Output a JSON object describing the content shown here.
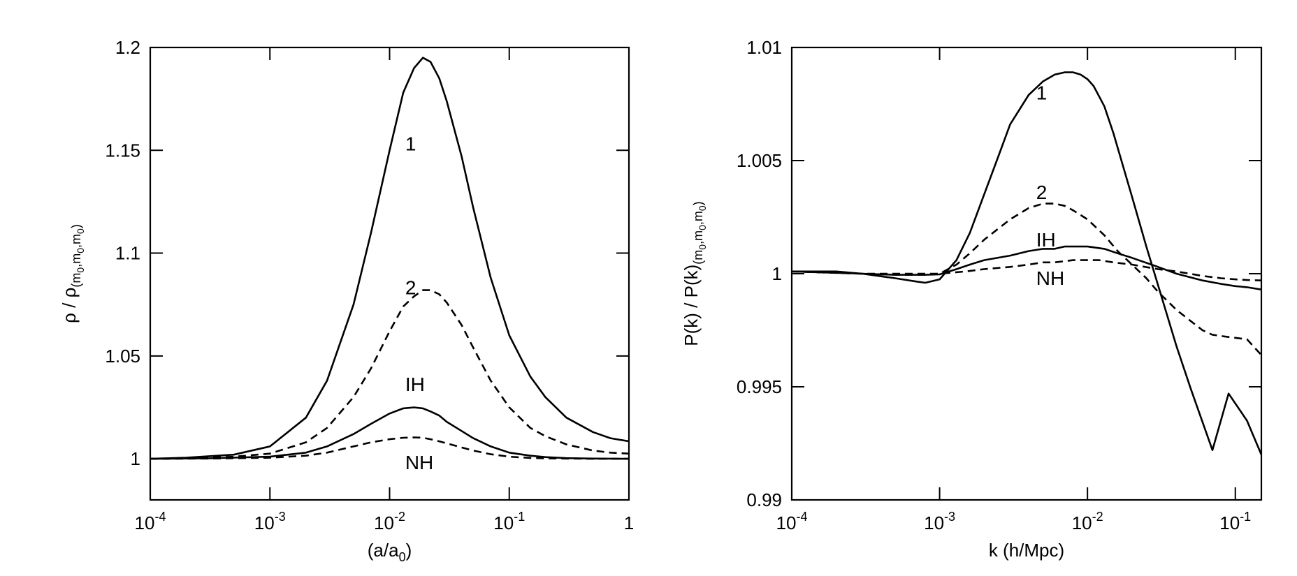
{
  "chart_data": [
    {
      "type": "line",
      "xscale": "log",
      "xlim": [
        0.0001,
        1
      ],
      "ylim": [
        0.98,
        1.2
      ],
      "xlabel": {
        "base": "(a/a",
        "sub": "0",
        "close": ")"
      },
      "ylabel": {
        "prefix": "ρ / ρ",
        "sub": "(m",
        "s1": "0",
        "c1": ",m",
        "s2": "0",
        "c2": ",m",
        "s3": "0",
        "c3": ")"
      },
      "xticks": [
        {
          "value": 0.0001,
          "base": "10",
          "exp": "-4"
        },
        {
          "value": 0.001,
          "base": "10",
          "exp": "-3"
        },
        {
          "value": 0.01,
          "base": "10",
          "exp": "-2"
        },
        {
          "value": 0.1,
          "base": "10",
          "exp": "-1"
        },
        {
          "value": 1,
          "base": "1",
          "exp": ""
        }
      ],
      "yticks": [
        {
          "value": 1.0,
          "label": "1"
        },
        {
          "value": 1.05,
          "label": "1.05"
        },
        {
          "value": 1.1,
          "label": "1.1"
        },
        {
          "value": 1.15,
          "label": "1.15"
        },
        {
          "value": 1.2,
          "label": "1.2"
        }
      ],
      "series": [
        {
          "label": "1",
          "style": "solid",
          "label_at": [
            0.0135,
            1.15
          ],
          "x": [
            0.0001,
            0.0002,
            0.0005,
            0.001,
            0.002,
            0.003,
            0.005,
            0.007,
            0.01,
            0.013,
            0.016,
            0.019,
            0.022,
            0.026,
            0.03,
            0.04,
            0.05,
            0.07,
            0.1,
            0.15,
            0.2,
            0.3,
            0.5,
            0.7,
            1
          ],
          "y": [
            1.0,
            1.0005,
            1.002,
            1.006,
            1.02,
            1.038,
            1.075,
            1.11,
            1.15,
            1.178,
            1.19,
            1.195,
            1.193,
            1.185,
            1.174,
            1.147,
            1.122,
            1.088,
            1.06,
            1.04,
            1.03,
            1.02,
            1.013,
            1.01,
            1.0085
          ]
        },
        {
          "label": "2",
          "style": "dashed",
          "label_at": [
            0.0135,
            1.08
          ],
          "x": [
            0.0001,
            0.0002,
            0.0005,
            0.001,
            0.002,
            0.003,
            0.005,
            0.007,
            0.01,
            0.013,
            0.016,
            0.019,
            0.022,
            0.026,
            0.03,
            0.04,
            0.05,
            0.07,
            0.1,
            0.15,
            0.2,
            0.3,
            0.5,
            0.7,
            1
          ],
          "y": [
            1.0,
            1.0002,
            1.001,
            1.0025,
            1.008,
            1.015,
            1.03,
            1.044,
            1.062,
            1.074,
            1.079,
            1.082,
            1.082,
            1.08,
            1.076,
            1.065,
            1.054,
            1.038,
            1.025,
            1.015,
            1.011,
            1.007,
            1.004,
            1.003,
            1.0025
          ]
        },
        {
          "label": "IH",
          "style": "solid",
          "label_at": [
            0.0135,
            1.033
          ],
          "x": [
            0.0001,
            0.0003,
            0.001,
            0.002,
            0.003,
            0.005,
            0.007,
            0.01,
            0.013,
            0.016,
            0.019,
            0.022,
            0.026,
            0.03,
            0.04,
            0.05,
            0.07,
            0.1,
            0.15,
            0.2,
            0.3,
            0.5,
            1
          ],
          "y": [
            1.0,
            1.0002,
            1.001,
            1.003,
            1.006,
            1.012,
            1.017,
            1.022,
            1.0245,
            1.025,
            1.0245,
            1.023,
            1.021,
            1.018,
            1.0135,
            1.01,
            1.006,
            1.003,
            1.0015,
            1.0008,
            1.0003,
            1.0001,
            1.0
          ]
        },
        {
          "label": "NH",
          "style": "dashed",
          "label_at": [
            0.0135,
            0.995
          ],
          "x": [
            0.0001,
            0.0003,
            0.001,
            0.002,
            0.003,
            0.005,
            0.007,
            0.01,
            0.013,
            0.016,
            0.019,
            0.022,
            0.026,
            0.03,
            0.04,
            0.05,
            0.07,
            0.1,
            0.15,
            0.2,
            0.3,
            0.5,
            1
          ],
          "y": [
            1.0,
            1.0001,
            1.0005,
            1.0015,
            1.003,
            1.006,
            1.008,
            1.0095,
            1.0102,
            1.0104,
            1.0102,
            1.0095,
            1.0085,
            1.0075,
            1.0055,
            1.004,
            1.0022,
            1.001,
            1.0004,
            1.0002,
            1.0001,
            1.0,
            1.0
          ]
        }
      ]
    },
    {
      "type": "line",
      "xscale": "log",
      "xlim": [
        0.0001,
        0.15
      ],
      "ylim": [
        0.99,
        1.01
      ],
      "xlabel": {
        "base": "k   (h/Mpc)",
        "sub": "",
        "close": ""
      },
      "ylabel": {
        "prefix": "P(k) / P(k)",
        "sub": "(m",
        "s1": "0",
        "c1": ",m",
        "s2": "0",
        "c2": ",m",
        "s3": "0",
        "c3": ")"
      },
      "xticks": [
        {
          "value": 0.0001,
          "base": "10",
          "exp": "-4"
        },
        {
          "value": 0.001,
          "base": "10",
          "exp": "-3"
        },
        {
          "value": 0.01,
          "base": "10",
          "exp": "-2"
        },
        {
          "value": 0.1,
          "base": "10",
          "exp": "-1"
        }
      ],
      "yticks": [
        {
          "value": 0.99,
          "label": "0.99"
        },
        {
          "value": 0.995,
          "label": "0.995"
        },
        {
          "value": 1.0,
          "label": "1"
        },
        {
          "value": 1.005,
          "label": "1.005"
        },
        {
          "value": 1.01,
          "label": "1.01"
        }
      ],
      "series": [
        {
          "label": "1",
          "style": "solid",
          "label_at": [
            0.0045,
            1.0077
          ],
          "x": [
            0.0001,
            0.0002,
            0.0003,
            0.0005,
            0.0007,
            0.0008,
            0.001,
            0.0013,
            0.0016,
            0.002,
            0.0025,
            0.003,
            0.004,
            0.005,
            0.006,
            0.007,
            0.008,
            0.009,
            0.01,
            0.011,
            0.013,
            0.015,
            0.02,
            0.025,
            0.03,
            0.04,
            0.05,
            0.07,
            0.09,
            0.12,
            0.15
          ],
          "y": [
            1.0001,
            1.0001,
            1.0,
            0.9998,
            0.99965,
            0.9996,
            0.99975,
            1.0006,
            1.0018,
            1.0035,
            1.0052,
            1.0066,
            1.0079,
            1.0085,
            1.0088,
            1.0089,
            1.0089,
            1.0088,
            1.0086,
            1.0083,
            1.0074,
            1.0062,
            1.0034,
            1.0012,
            0.9995,
            0.9968,
            0.9949,
            0.9922,
            0.9947,
            0.9935,
            0.992
          ]
        },
        {
          "label": "2",
          "style": "dashed",
          "label_at": [
            0.0045,
            1.0033
          ],
          "x": [
            0.0001,
            0.0003,
            0.0005,
            0.0008,
            0.001,
            0.0013,
            0.0016,
            0.002,
            0.003,
            0.004,
            0.005,
            0.006,
            0.007,
            0.008,
            0.01,
            0.013,
            0.016,
            0.02,
            0.025,
            0.03,
            0.04,
            0.05,
            0.06,
            0.07,
            0.09,
            0.12,
            0.15
          ],
          "y": [
            1.0001,
            1.0,
            0.99995,
            0.99995,
            1.0,
            1.0004,
            1.0009,
            1.0015,
            1.0024,
            1.0029,
            1.0031,
            1.0031,
            1.003,
            1.0028,
            1.0024,
            1.0017,
            1.001,
            1.0004,
            0.9998,
            0.9992,
            0.9984,
            0.9979,
            0.9975,
            0.9973,
            0.9972,
            0.9971,
            0.9964
          ]
        },
        {
          "label": "IH",
          "style": "solid",
          "label_at": [
            0.0045,
            1.0012
          ],
          "x": [
            0.0001,
            0.0003,
            0.0005,
            0.0008,
            0.001,
            0.0013,
            0.0016,
            0.002,
            0.003,
            0.004,
            0.005,
            0.006,
            0.007,
            0.008,
            0.009,
            0.01,
            0.013,
            0.016,
            0.02,
            0.03,
            0.04,
            0.06,
            0.08,
            0.1,
            0.12,
            0.15
          ],
          "y": [
            1.0001,
            1.0,
            0.99995,
            0.99995,
            0.99997,
            1.0002,
            1.0004,
            1.0006,
            1.0008,
            1.001,
            1.0011,
            1.0011,
            1.0012,
            1.0012,
            1.0012,
            1.0012,
            1.0011,
            1.0009,
            1.0007,
            1.0003,
            1.0,
            0.9997,
            0.99955,
            0.99945,
            0.9994,
            0.9993
          ]
        },
        {
          "label": "NH",
          "style": "dashed",
          "label_at": [
            0.0045,
            0.9995
          ],
          "x": [
            0.0001,
            0.0003,
            0.0005,
            0.001,
            0.0015,
            0.002,
            0.003,
            0.004,
            0.005,
            0.006,
            0.008,
            0.01,
            0.012,
            0.015,
            0.02,
            0.03,
            0.04,
            0.06,
            0.08,
            0.1,
            0.12,
            0.15
          ],
          "y": [
            1.0001,
            1.0,
            1.0,
            1.0,
            1.0001,
            1.0002,
            1.0003,
            1.0004,
            1.0005,
            1.0005,
            1.0006,
            1.0006,
            1.0006,
            1.0005,
            1.0004,
            1.0002,
            1.0001,
            0.9999,
            0.9998,
            0.99975,
            0.99972,
            0.9997
          ]
        }
      ]
    }
  ]
}
